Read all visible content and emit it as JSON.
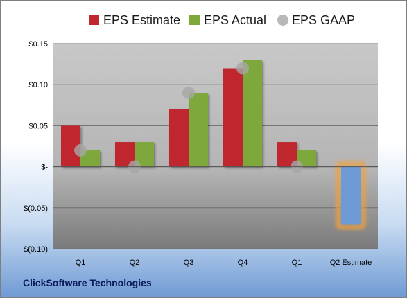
{
  "chart_data": {
    "type": "bar",
    "categories": [
      "Q1",
      "Q2",
      "Q3",
      "Q4",
      "Q1",
      "Q2 Estimate"
    ],
    "series": [
      {
        "name": "EPS Estimate",
        "color": "#c0272d",
        "values": [
          0.05,
          0.03,
          0.07,
          0.12,
          0.03,
          null
        ]
      },
      {
        "name": "EPS Actual",
        "color": "#7ea83a",
        "values": [
          0.02,
          0.03,
          0.09,
          0.13,
          0.02,
          -0.07
        ]
      },
      {
        "name": "EPS GAAP",
        "color": "#a6a6a6",
        "marker": "circle",
        "values": [
          0.02,
          0.0,
          0.09,
          0.12,
          0.0,
          null
        ]
      }
    ],
    "highlight_bar": {
      "category_index": 5,
      "color": "#6e9bd6",
      "glow": "#f0a040"
    },
    "y_ticks": [
      {
        "value": 0.15,
        "label": "$0.15"
      },
      {
        "value": 0.1,
        "label": "$0.10"
      },
      {
        "value": 0.05,
        "label": "$0.05"
      },
      {
        "value": 0.0,
        "label": "$-"
      },
      {
        "value": -0.05,
        "label": "$(0.05)"
      },
      {
        "value": -0.1,
        "label": "$(0.10)"
      }
    ],
    "ylim": [
      -0.1,
      0.15
    ],
    "grid": true,
    "legend_position": "top"
  },
  "footer": {
    "company": "ClickSoftware Technologies"
  }
}
